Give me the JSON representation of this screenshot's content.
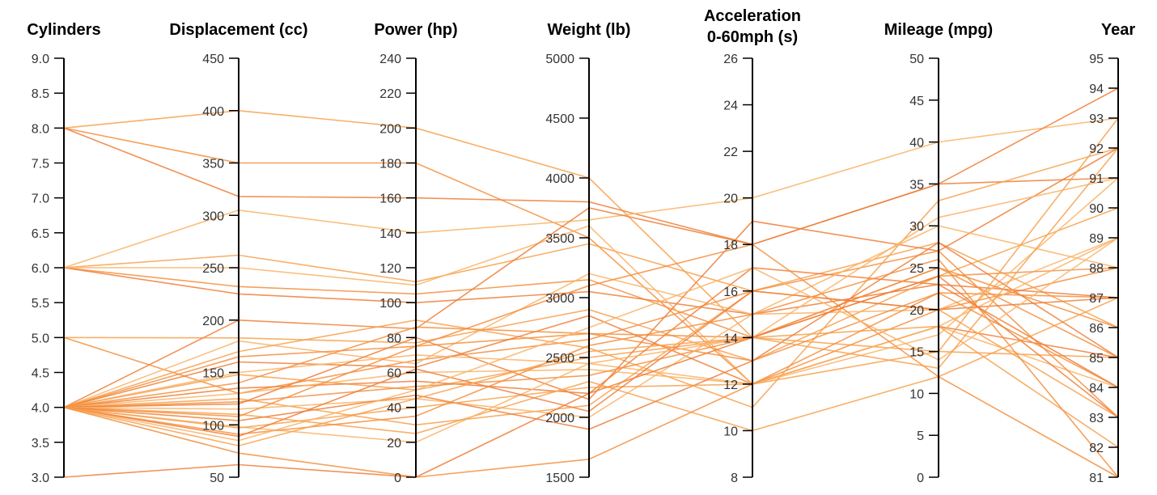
{
  "chart_data": {
    "type": "parallel_coordinates",
    "line_colors": [
      "#f7a14e",
      "#f48f3e",
      "#ee7f3a",
      "#f9b467"
    ],
    "axes": [
      {
        "key": "cyl",
        "title": [
          "Cylinders"
        ],
        "range": [
          3,
          9
        ],
        "ticks": [
          "3.0",
          "3.5",
          "4.0",
          "4.5",
          "5.0",
          "5.5",
          "6.0",
          "6.5",
          "7.0",
          "7.5",
          "8.0",
          "8.5",
          "9.0"
        ],
        "label_side": "left"
      },
      {
        "key": "disp",
        "title": [
          "Displacement (cc)"
        ],
        "range": [
          50,
          450
        ],
        "ticks": [
          "50",
          "100",
          "150",
          "200",
          "250",
          "300",
          "350",
          "400",
          "450"
        ],
        "label_side": "left"
      },
      {
        "key": "hp",
        "title": [
          "Power (hp)"
        ],
        "range": [
          0,
          240
        ],
        "ticks": [
          "0",
          "20",
          "40",
          "60",
          "80",
          "100",
          "120",
          "140",
          "160",
          "180",
          "200",
          "220",
          "240"
        ],
        "label_side": "left"
      },
      {
        "key": "wt",
        "title": [
          "Weight (lb)"
        ],
        "range": [
          1500,
          5000
        ],
        "ticks": [
          "1500",
          "2000",
          "2500",
          "3000",
          "3500",
          "4000",
          "4500",
          "5000"
        ],
        "label_side": "left"
      },
      {
        "key": "acc",
        "title": [
          "Acceleration",
          "0-60mph (s)"
        ],
        "range": [
          8,
          26
        ],
        "ticks": [
          "8",
          "10",
          "12",
          "14",
          "16",
          "18",
          "20",
          "22",
          "24",
          "26"
        ],
        "label_side": "left"
      },
      {
        "key": "mpg",
        "title": [
          "Mileage (mpg)"
        ],
        "range": [
          0,
          50
        ],
        "ticks": [
          "0",
          "5",
          "10",
          "15",
          "20",
          "25",
          "30",
          "35",
          "40",
          "45",
          "50"
        ],
        "label_side": "left"
      },
      {
        "key": "year",
        "title": [
          "Year"
        ],
        "range": [
          81,
          95
        ],
        "ticks": [
          "81",
          "82",
          "83",
          "84",
          "85",
          "86",
          "87",
          "88",
          "89",
          "90",
          "91",
          "92",
          "93",
          "94",
          "95"
        ],
        "label_side": "left"
      }
    ],
    "records": [
      [
        8,
        400,
        200,
        4000,
        14,
        15,
        85
      ],
      [
        8,
        350,
        180,
        3500,
        12,
        20,
        88
      ],
      [
        8,
        318,
        160,
        3800,
        18,
        35,
        91
      ],
      [
        6,
        305,
        140,
        3650,
        20,
        40,
        93
      ],
      [
        6,
        262,
        112,
        3450,
        16,
        28,
        86
      ],
      [
        6,
        232,
        105,
        3150,
        14,
        25,
        85
      ],
      [
        6,
        225,
        100,
        3050,
        15,
        23,
        87
      ],
      [
        6,
        250,
        110,
        3600,
        12,
        18,
        84
      ],
      [
        5,
        183,
        77,
        2900,
        13,
        24,
        90
      ],
      [
        5,
        130,
        67,
        2650,
        16,
        27,
        83
      ],
      [
        4,
        200,
        85,
        3750,
        18,
        35,
        94
      ],
      [
        4,
        180,
        65,
        3200,
        15,
        20,
        89
      ],
      [
        4,
        170,
        90,
        2580,
        11,
        33,
        92
      ],
      [
        4,
        165,
        75,
        2700,
        14,
        24,
        88
      ],
      [
        4,
        160,
        63,
        2850,
        12,
        18,
        85
      ],
      [
        4,
        150,
        70,
        2450,
        12,
        17,
        91
      ],
      [
        4,
        148,
        50,
        2500,
        14,
        18,
        82
      ],
      [
        4,
        140,
        86,
        2700,
        13,
        22,
        87
      ],
      [
        4,
        135,
        55,
        2200,
        17,
        23,
        84
      ],
      [
        4,
        130,
        60,
        2400,
        12,
        18,
        89
      ],
      [
        4,
        125,
        30,
        2100,
        16,
        20,
        83
      ],
      [
        4,
        122,
        52,
        2350,
        14,
        25,
        86
      ],
      [
        4,
        120,
        80,
        2150,
        19,
        27,
        92
      ],
      [
        4,
        115,
        45,
        2000,
        15,
        30,
        88
      ],
      [
        4,
        110,
        25,
        2300,
        10,
        12,
        87
      ],
      [
        4,
        108,
        75,
        3100,
        18,
        12,
        81
      ],
      [
        4,
        104,
        47,
        1900,
        13,
        28,
        85
      ],
      [
        4,
        98,
        20,
        2450,
        14,
        31,
        91
      ],
      [
        4,
        97,
        40,
        2250,
        12,
        15,
        93
      ],
      [
        4,
        91,
        35,
        2600,
        15,
        26,
        81
      ],
      [
        4,
        89,
        62,
        2050,
        16,
        20,
        87
      ],
      [
        4,
        85,
        50,
        2750,
        17,
        14,
        89
      ],
      [
        4,
        80,
        45,
        2550,
        14,
        13,
        92
      ],
      [
        4,
        73,
        0,
        1650,
        12,
        22,
        84
      ],
      [
        3,
        62,
        0,
        2200,
        14,
        24,
        83
      ]
    ]
  }
}
